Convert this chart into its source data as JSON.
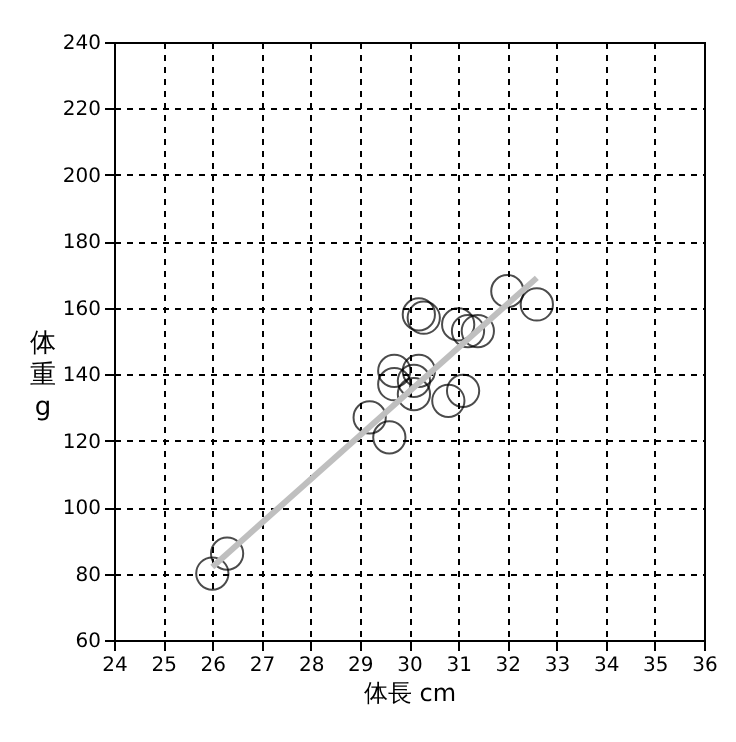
{
  "chart_data": {
    "type": "scatter",
    "xlabel": "体長 cm",
    "ylabel": "体重 g",
    "xlim": [
      24,
      36
    ],
    "ylim": [
      60,
      240
    ],
    "xticks": [
      24,
      25,
      26,
      27,
      28,
      29,
      30,
      31,
      32,
      33,
      34,
      35,
      36
    ],
    "yticks": [
      60,
      80,
      100,
      120,
      140,
      160,
      180,
      200,
      220,
      240
    ],
    "grid": true,
    "series": [
      {
        "type": "scatter",
        "marker": "circle",
        "color": "#000000",
        "x": [
          26.0,
          26.3,
          29.2,
          29.6,
          29.7,
          29.7,
          30.1,
          30.1,
          30.2,
          30.2,
          30.3,
          30.8,
          31.1,
          31.0,
          31.2,
          31.4,
          32.0,
          32.6
        ],
        "values": [
          80,
          86,
          127,
          121,
          137,
          141,
          134,
          138,
          141,
          158,
          157,
          132,
          135,
          155,
          153,
          153,
          165,
          161
        ]
      },
      {
        "type": "line",
        "marker": "none",
        "color": "#bfbfbf",
        "x": [
          26.0,
          32.6
        ],
        "values": [
          82,
          169
        ]
      }
    ]
  }
}
